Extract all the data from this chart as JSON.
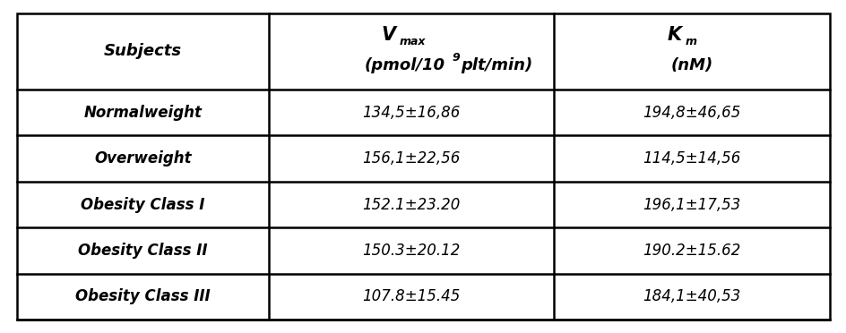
{
  "subjects": [
    "Normalweight",
    "Overweight",
    "Obesity Class I",
    "Obesity Class II",
    "Obesity Class III"
  ],
  "vmax": [
    "134,5±16,86",
    "156,1±22,56",
    "152.1±23.20",
    "150.3±20.12",
    "107.8±15.45"
  ],
  "km": [
    "194,8±46,65",
    "114,5±14,56",
    "196,1±17,53",
    "190.2±15.62",
    "184,1±40,53"
  ],
  "col_header_subjects": "Subjects",
  "col_header_km_line2": "(nM)",
  "bg_color": "#ffffff",
  "border_color": "#000000",
  "text_color": "#000000",
  "fig_width": 9.45,
  "fig_height": 3.72,
  "dpi": 100
}
